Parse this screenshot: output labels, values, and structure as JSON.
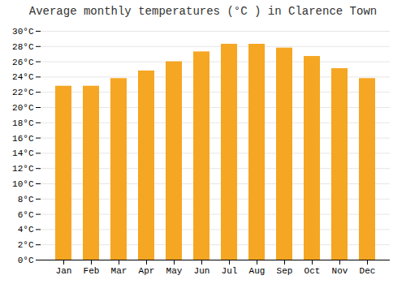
{
  "chart_data": {
    "type": "bar",
    "title": "Average monthly temperatures (°C ) in Clarence Town",
    "categories": [
      "Jan",
      "Feb",
      "Mar",
      "Apr",
      "May",
      "Jun",
      "Jul",
      "Aug",
      "Sep",
      "Oct",
      "Nov",
      "Dec"
    ],
    "values": [
      22.8,
      22.8,
      23.8,
      24.8,
      26.0,
      27.3,
      28.3,
      28.3,
      27.8,
      26.7,
      25.1,
      23.8
    ],
    "color": "#F5A623",
    "ylim": [
      0,
      30
    ],
    "yticks": [
      {
        "value": 0,
        "label": "0°C"
      },
      {
        "value": 2,
        "label": "2°C"
      },
      {
        "value": 4,
        "label": "4°C"
      },
      {
        "value": 6,
        "label": "6°C"
      },
      {
        "value": 8,
        "label": "8°C"
      },
      {
        "value": 10,
        "label": "10°C"
      },
      {
        "value": 12,
        "label": "12°C"
      },
      {
        "value": 14,
        "label": "14°C"
      },
      {
        "value": 16,
        "label": "16°C"
      },
      {
        "value": 18,
        "label": "18°C"
      },
      {
        "value": 20,
        "label": "20°C"
      },
      {
        "value": 22,
        "label": "22°C"
      },
      {
        "value": 24,
        "label": "24°C"
      },
      {
        "value": 26,
        "label": "26°C"
      },
      {
        "value": 28,
        "label": "28°C"
      },
      {
        "value": 30,
        "label": "30°C"
      }
    ],
    "grid": true
  }
}
